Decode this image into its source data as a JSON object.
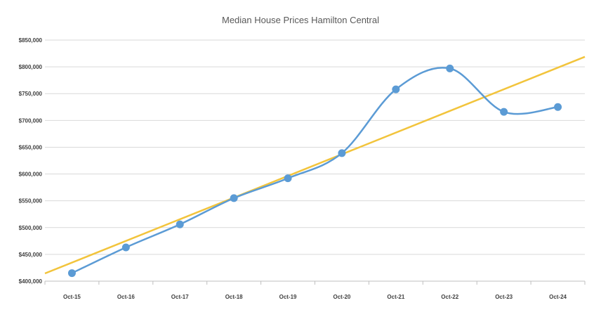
{
  "chart_data": {
    "type": "line",
    "title": "Median House Prices Hamilton Central",
    "xlabel": "",
    "ylabel": "",
    "categories": [
      "Oct-15",
      "Oct-16",
      "Oct-17",
      "Oct-18",
      "Oct-19",
      "Oct-20",
      "Oct-21",
      "Oct-22",
      "Oct-23",
      "Oct-24"
    ],
    "series": [
      {
        "values": [
          415000,
          463000,
          506000,
          555000,
          592000,
          639000,
          758000,
          797000,
          716000,
          725000
        ],
        "color": "#5b9bd5",
        "smooth": true,
        "markers": true
      }
    ],
    "trendline": {
      "type": "linear",
      "color": "#f2c43c"
    },
    "ylim": [
      400000,
      850000
    ],
    "yticks": [
      "$400,000",
      "$450,000",
      "$500,000",
      "$550,000",
      "$600,000",
      "$650,000",
      "$700,000",
      "$750,000",
      "$800,000",
      "$850,000"
    ],
    "ytick_values": [
      400000,
      450000,
      500000,
      550000,
      600000,
      650000,
      700000,
      750000,
      800000,
      850000
    ],
    "grid": true,
    "legend": "none",
    "colors": {
      "gridline": "#d9d9d9",
      "axis": "#bfbfbf",
      "text": "#404040",
      "title": "#595959"
    }
  }
}
